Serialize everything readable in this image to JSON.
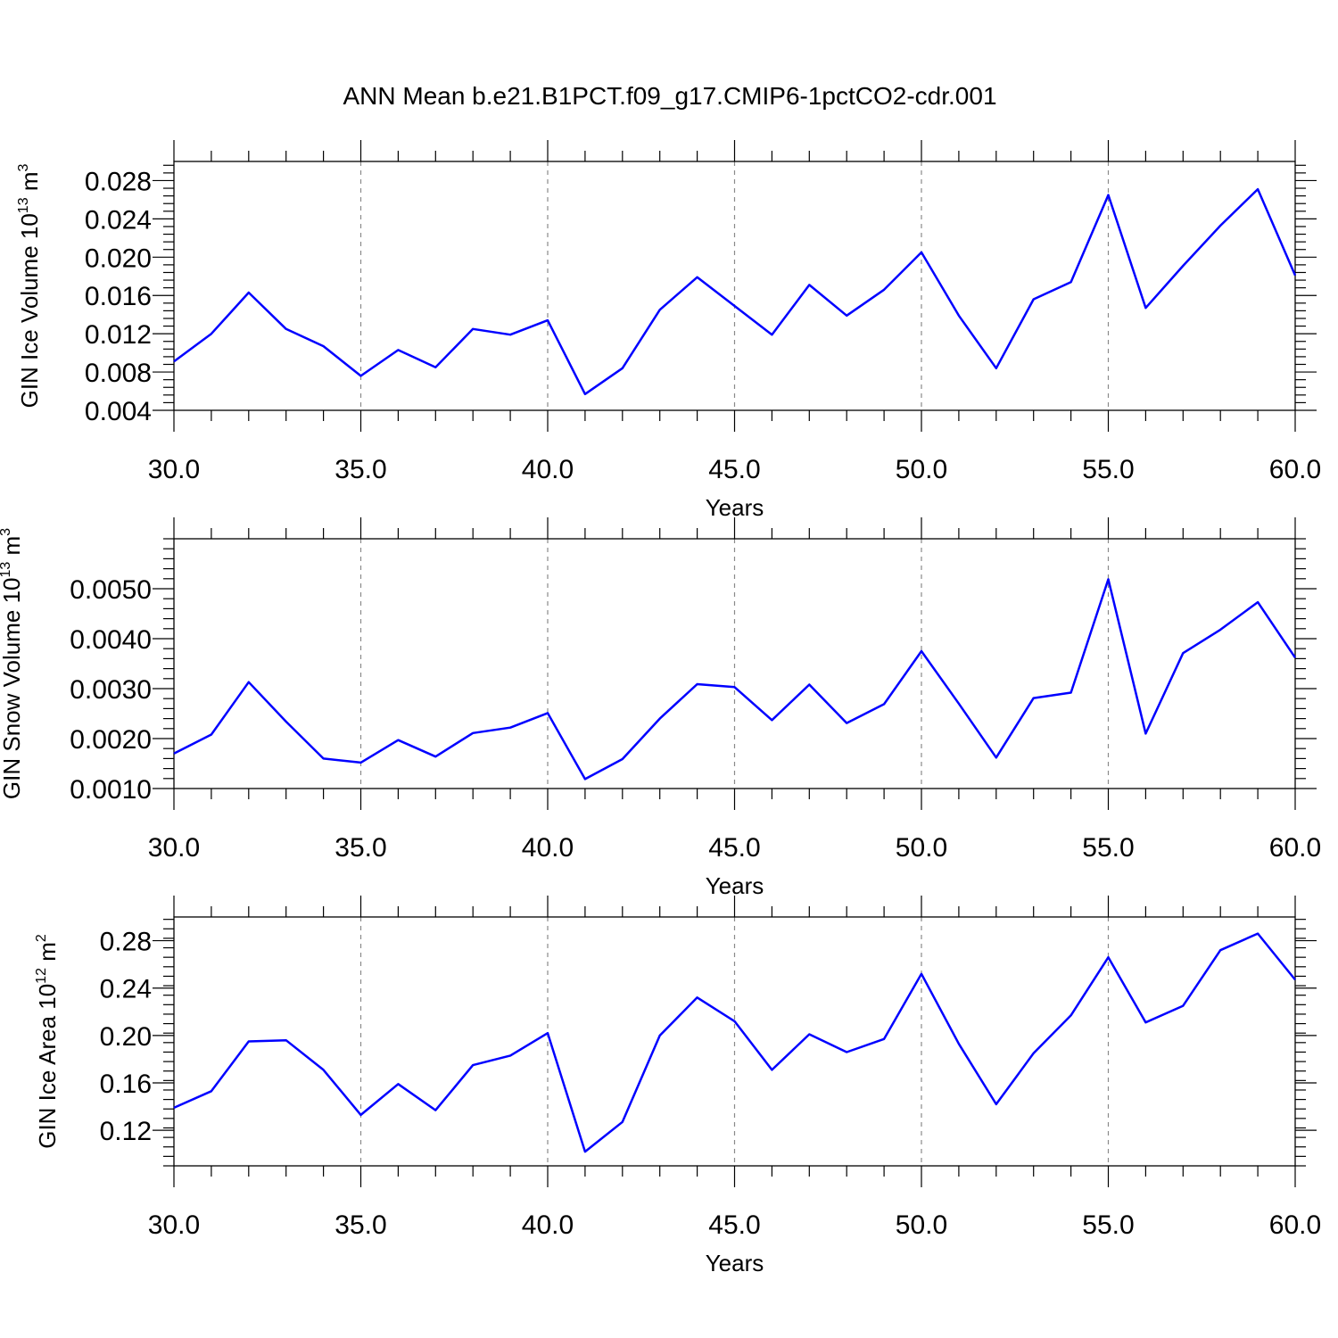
{
  "title": "ANN Mean b.e21.B1PCT.f09_g17.CMIP6-1pctCO2-cdr.001",
  "chart_data": [
    {
      "type": "line",
      "xlabel": "Years",
      "ylabel_main": "GIN Ice Volume 10",
      "ylabel_exp": "13",
      "ylabel_unit": "m",
      "ylabel_unit_exp": "3",
      "xlim": [
        30,
        60
      ],
      "ylim": [
        0.004,
        0.03
      ],
      "xticks": [
        30,
        35,
        40,
        45,
        50,
        55,
        60
      ],
      "xtick_labels": [
        "30.0",
        "35.0",
        "40.0",
        "45.0",
        "50.0",
        "55.0",
        "60.0"
      ],
      "yticks": [
        0.004,
        0.008,
        0.012,
        0.016,
        0.02,
        0.024,
        0.028
      ],
      "ytick_labels": [
        "0.004",
        "0.008",
        "0.012",
        "0.016",
        "0.020",
        "0.024",
        "0.028"
      ],
      "grid": "vertical dashed at major x ticks",
      "x": [
        30,
        31,
        32,
        33,
        34,
        35,
        36,
        37,
        38,
        39,
        40,
        41,
        42,
        43,
        44,
        45,
        46,
        47,
        48,
        49,
        50,
        51,
        52,
        53,
        54,
        55,
        56,
        57,
        58,
        59,
        60
      ],
      "y": [
        0.0091,
        0.012,
        0.0163,
        0.0125,
        0.0107,
        0.0076,
        0.0103,
        0.0085,
        0.0125,
        0.0119,
        0.0134,
        0.0057,
        0.0084,
        0.0145,
        0.0179,
        0.0149,
        0.0119,
        0.0171,
        0.0139,
        0.0166,
        0.0205,
        0.0139,
        0.0084,
        0.0156,
        0.0174,
        0.0265,
        0.0147,
        0.0191,
        0.0233,
        0.0271,
        0.0181
      ]
    },
    {
      "type": "line",
      "xlabel": "Years",
      "ylabel_main": "GIN Snow Volume 10",
      "ylabel_exp": "13",
      "ylabel_unit": "m",
      "ylabel_unit_exp": "3",
      "xlim": [
        30,
        60
      ],
      "ylim": [
        0.001,
        0.006
      ],
      "xticks": [
        30,
        35,
        40,
        45,
        50,
        55,
        60
      ],
      "xtick_labels": [
        "30.0",
        "35.0",
        "40.0",
        "45.0",
        "50.0",
        "55.0",
        "60.0"
      ],
      "yticks": [
        0.001,
        0.002,
        0.003,
        0.004,
        0.005
      ],
      "ytick_labels": [
        "0.0010",
        "0.0020",
        "0.0030",
        "0.0040",
        "0.0050"
      ],
      "grid": "vertical dashed at major x ticks",
      "x": [
        30,
        31,
        32,
        33,
        34,
        35,
        36,
        37,
        38,
        39,
        40,
        41,
        42,
        43,
        44,
        45,
        46,
        47,
        48,
        49,
        50,
        51,
        52,
        53,
        54,
        55,
        56,
        57,
        58,
        59,
        60
      ],
      "y": [
        0.0017,
        0.00208,
        0.00313,
        0.00234,
        0.0016,
        0.00152,
        0.00197,
        0.00164,
        0.00211,
        0.00222,
        0.00251,
        0.00119,
        0.00159,
        0.0024,
        0.00309,
        0.00303,
        0.00237,
        0.00308,
        0.00231,
        0.00269,
        0.00375,
        0.0027,
        0.00162,
        0.00281,
        0.00292,
        0.00519,
        0.0021,
        0.00371,
        0.00418,
        0.00473,
        0.00362
      ]
    },
    {
      "type": "line",
      "xlabel": "Years",
      "ylabel_main": "GIN Ice Area 10",
      "ylabel_exp": "12",
      "ylabel_unit": "m",
      "ylabel_unit_exp": "2",
      "xlim": [
        30,
        60
      ],
      "ylim": [
        0.09,
        0.3
      ],
      "xticks": [
        30,
        35,
        40,
        45,
        50,
        55,
        60
      ],
      "xtick_labels": [
        "30.0",
        "35.0",
        "40.0",
        "45.0",
        "50.0",
        "55.0",
        "60.0"
      ],
      "yticks": [
        0.12,
        0.16,
        0.2,
        0.24,
        0.28
      ],
      "ytick_labels": [
        "0.12",
        "0.16",
        "0.20",
        "0.24",
        "0.28"
      ],
      "grid": "vertical dashed at major x ticks",
      "x": [
        30,
        31,
        32,
        33,
        34,
        35,
        36,
        37,
        38,
        39,
        40,
        41,
        42,
        43,
        44,
        45,
        46,
        47,
        48,
        49,
        50,
        51,
        52,
        53,
        54,
        55,
        56,
        57,
        58,
        59,
        60
      ],
      "y": [
        0.139,
        0.153,
        0.195,
        0.196,
        0.171,
        0.133,
        0.159,
        0.137,
        0.175,
        0.183,
        0.202,
        0.102,
        0.127,
        0.2,
        0.232,
        0.212,
        0.171,
        0.201,
        0.186,
        0.197,
        0.252,
        0.193,
        0.142,
        0.185,
        0.217,
        0.266,
        0.211,
        0.225,
        0.272,
        0.286,
        0.247
      ]
    }
  ]
}
